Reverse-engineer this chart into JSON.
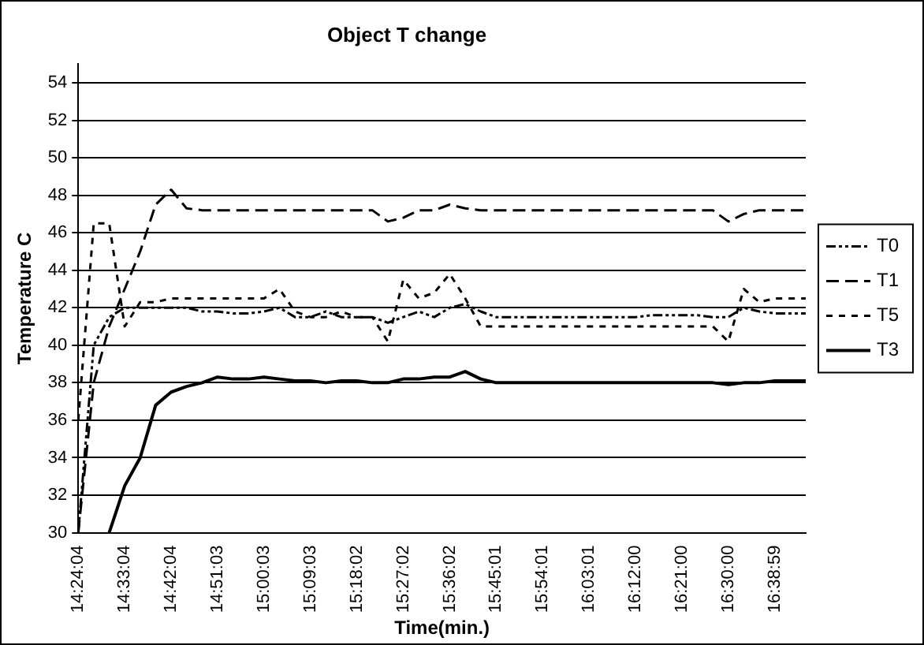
{
  "chart_data": {
    "type": "line",
    "title": "Object T change",
    "xlabel": "Time(min.)",
    "ylabel": "Temperature C",
    "categories": [
      "14:24:04",
      null,
      null,
      "14:33:04",
      null,
      null,
      "14:42:04",
      null,
      null,
      "14:51:03",
      null,
      null,
      "15:00:03",
      null,
      null,
      "15:09:03",
      null,
      null,
      "15:18:02",
      null,
      null,
      "15:27:02",
      null,
      null,
      "15:36:02",
      null,
      null,
      "15:45:01",
      null,
      null,
      "15:54:01",
      null,
      null,
      "16:03:01",
      null,
      null,
      "16:12:00",
      null,
      null,
      "16:21:00",
      null,
      null,
      "16:30:00",
      null,
      null,
      "16:38:59",
      null,
      null
    ],
    "series": [
      {
        "name": "T0",
        "color": "#000000",
        "line_style": "dashdotdot",
        "values": [
          30,
          40,
          41.5,
          42,
          42,
          42,
          42,
          42,
          41.8,
          41.8,
          41.7,
          41.7,
          41.8,
          42,
          41.5,
          41.5,
          41.8,
          41.5,
          41.5,
          41.5,
          41.2,
          41.5,
          41.8,
          41.5,
          42,
          42.2,
          41.8,
          41.5,
          41.5,
          41.5,
          41.5,
          41.5,
          41.5,
          41.5,
          41.5,
          41.5,
          41.5,
          41.6,
          41.6,
          41.6,
          41.6,
          41.5,
          41.5,
          42,
          41.8,
          41.7,
          41.7,
          41.7
        ]
      },
      {
        "name": "T1",
        "color": "#000000",
        "line_style": "dashed",
        "values": [
          30,
          38,
          41,
          43,
          45,
          47.5,
          48.3,
          47.3,
          47.2,
          47.2,
          47.2,
          47.2,
          47.2,
          47.2,
          47.2,
          47.2,
          47.2,
          47.2,
          47.2,
          47.2,
          46.6,
          46.8,
          47.2,
          47.2,
          47.5,
          47.3,
          47.2,
          47.2,
          47.2,
          47.2,
          47.2,
          47.2,
          47.2,
          47.2,
          47.2,
          47.2,
          47.2,
          47.2,
          47.2,
          47.2,
          47.2,
          47.2,
          46.6,
          47,
          47.2,
          47.2,
          47.2,
          47.2
        ]
      },
      {
        "name": "T5",
        "color": "#000000",
        "line_style": "dotted",
        "values": [
          36,
          46.5,
          46.5,
          41,
          42.3,
          42.3,
          42.5,
          42.5,
          42.5,
          42.5,
          42.5,
          42.5,
          42.5,
          43,
          41.8,
          41.5,
          41.5,
          41.8,
          41.5,
          41.5,
          40.2,
          43.5,
          42.5,
          42.8,
          43.8,
          42.5,
          41,
          41,
          41,
          41,
          41,
          41,
          41,
          41,
          41,
          41,
          41,
          41,
          41,
          41,
          41,
          41,
          40.2,
          43,
          42.3,
          42.5,
          42.5,
          42.5
        ]
      },
      {
        "name": "T3",
        "color": "#000000",
        "line_style": "solid",
        "values": [
          null,
          null,
          30,
          32.5,
          34,
          36.8,
          37.5,
          37.8,
          38,
          38.3,
          38.2,
          38.2,
          38.3,
          38.2,
          38.1,
          38.1,
          38,
          38.1,
          38.1,
          38,
          38,
          38.2,
          38.2,
          38.3,
          38.3,
          38.6,
          38.2,
          38,
          38,
          38,
          38,
          38,
          38,
          38,
          38,
          38,
          38,
          38,
          38,
          38,
          38,
          38,
          37.9,
          38,
          38,
          38.1,
          38.1,
          38.1
        ]
      }
    ],
    "ylim": [
      30,
      55
    ],
    "yticks": [
      30,
      32,
      34,
      36,
      38,
      40,
      42,
      44,
      46,
      48,
      50,
      52,
      54
    ],
    "grid": "y",
    "legend": "right",
    "marker": "none"
  }
}
